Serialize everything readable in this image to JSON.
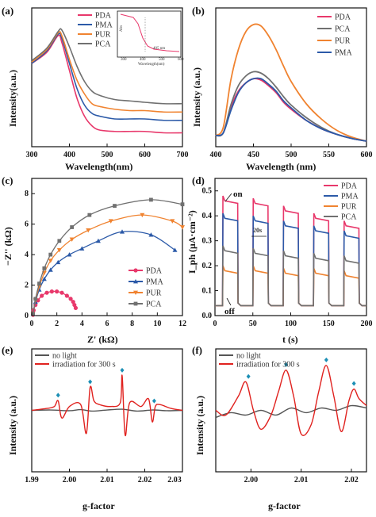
{
  "chart_data": [
    {
      "id": "a",
      "type": "line",
      "panel_label": "(a)",
      "xlabel": "Wavelength(nm)",
      "ylabel": "Intensity(a.u.)",
      "xlim": [
        300,
        700
      ],
      "ylim": [
        0,
        1
      ],
      "xticks": [
        "300",
        "400",
        "500",
        "600",
        "700"
      ],
      "legend": [
        "PDA",
        "PMA",
        "PUR",
        "PCA"
      ],
      "legend_position": "top-right",
      "series": [
        {
          "name": "PDA",
          "color": "#e8386b",
          "x": [
            300,
            340,
            370,
            380,
            400,
            420,
            440,
            460,
            480,
            520,
            560,
            600,
            650,
            700
          ],
          "y": [
            0.6,
            0.68,
            0.8,
            0.75,
            0.55,
            0.35,
            0.22,
            0.15,
            0.12,
            0.11,
            0.11,
            0.11,
            0.1,
            0.1
          ]
        },
        {
          "name": "PMA",
          "color": "#2c5aa8",
          "x": [
            300,
            340,
            370,
            380,
            400,
            420,
            440,
            460,
            480,
            520,
            560,
            600,
            650,
            700
          ],
          "y": [
            0.6,
            0.69,
            0.81,
            0.78,
            0.6,
            0.42,
            0.3,
            0.24,
            0.22,
            0.2,
            0.2,
            0.2,
            0.19,
            0.19
          ]
        },
        {
          "name": "PUR",
          "color": "#f08330",
          "x": [
            300,
            340,
            370,
            380,
            400,
            420,
            440,
            460,
            480,
            520,
            560,
            600,
            650,
            700
          ],
          "y": [
            0.61,
            0.7,
            0.82,
            0.8,
            0.63,
            0.48,
            0.38,
            0.31,
            0.29,
            0.27,
            0.26,
            0.26,
            0.25,
            0.25
          ]
        },
        {
          "name": "PCA",
          "color": "#707070",
          "x": [
            300,
            340,
            370,
            380,
            400,
            420,
            440,
            460,
            480,
            520,
            560,
            600,
            650,
            700
          ],
          "y": [
            0.62,
            0.71,
            0.83,
            0.84,
            0.72,
            0.58,
            0.47,
            0.4,
            0.37,
            0.34,
            0.33,
            0.32,
            0.31,
            0.31
          ]
        }
      ],
      "inset": {
        "ylabel": "Abs",
        "xlabel": "Wavelength(nm)",
        "xticks": [
          "300",
          "400",
          "500",
          "600"
        ],
        "annotation": "405 nm"
      }
    },
    {
      "id": "b",
      "type": "line",
      "panel_label": "(b)",
      "xlabel": "Wavelength (nm)",
      "ylabel": "Intensity (a.u.)",
      "xlim": [
        400,
        600
      ],
      "ylim": [
        0,
        1
      ],
      "xticks": [
        "400",
        "450",
        "500",
        "550",
        "600"
      ],
      "legend": [
        "PDA",
        "PCA",
        "PUR",
        "PMA"
      ],
      "legend_position": "top-right",
      "series": [
        {
          "name": "PDA",
          "color": "#e8386b",
          "x": [
            400,
            410,
            420,
            430,
            440,
            450,
            460,
            470,
            480,
            490,
            500,
            520,
            540,
            560,
            580,
            600
          ],
          "y": [
            0.08,
            0.1,
            0.28,
            0.4,
            0.46,
            0.49,
            0.48,
            0.44,
            0.39,
            0.32,
            0.27,
            0.19,
            0.13,
            0.09,
            0.06,
            0.04
          ]
        },
        {
          "name": "PCA",
          "color": "#707070",
          "x": [
            400,
            410,
            420,
            430,
            440,
            450,
            460,
            470,
            480,
            490,
            500,
            520,
            540,
            560,
            580,
            600
          ],
          "y": [
            0.08,
            0.1,
            0.3,
            0.44,
            0.51,
            0.54,
            0.53,
            0.49,
            0.43,
            0.36,
            0.3,
            0.21,
            0.14,
            0.09,
            0.06,
            0.04
          ]
        },
        {
          "name": "PUR",
          "color": "#f08330",
          "x": [
            400,
            410,
            420,
            430,
            440,
            450,
            460,
            470,
            480,
            490,
            500,
            520,
            540,
            560,
            580,
            600
          ],
          "y": [
            0.08,
            0.14,
            0.48,
            0.7,
            0.83,
            0.88,
            0.87,
            0.8,
            0.7,
            0.58,
            0.47,
            0.31,
            0.2,
            0.12,
            0.07,
            0.04
          ]
        },
        {
          "name": "PMA",
          "color": "#2c5aa8",
          "x": [
            400,
            410,
            420,
            430,
            440,
            450,
            460,
            470,
            480,
            490,
            500,
            520,
            540,
            560,
            580,
            600
          ],
          "y": [
            0.08,
            0.1,
            0.26,
            0.39,
            0.46,
            0.49,
            0.49,
            0.45,
            0.4,
            0.33,
            0.28,
            0.19,
            0.13,
            0.09,
            0.06,
            0.04
          ]
        }
      ]
    },
    {
      "id": "c",
      "type": "line",
      "panel_label": "(c)",
      "xlabel": "Z' (kΩ)",
      "ylabel": "−Z'' (kΩ)",
      "xlim": [
        0,
        12
      ],
      "ylim": [
        0,
        9
      ],
      "xticks": [
        "0",
        "2",
        "4",
        "6",
        "8",
        "10",
        "12"
      ],
      "yticks": [
        "0",
        "2",
        "4",
        "6",
        "8"
      ],
      "legend": [
        "PDA",
        "PMA",
        "PUR",
        "PCA"
      ],
      "legend_position": "bottom-right",
      "series": [
        {
          "name": "PDA",
          "color": "#e8386b",
          "marker": "circle",
          "x": [
            0.1,
            0.15,
            0.3,
            0.5,
            0.8,
            1.2,
            1.6,
            2.0,
            2.4,
            2.8,
            3.1,
            3.3,
            3.4,
            3.5
          ],
          "y": [
            0.05,
            0.35,
            0.7,
            1.0,
            1.3,
            1.5,
            1.58,
            1.58,
            1.5,
            1.3,
            1.1,
            0.9,
            0.7,
            0.5
          ]
        },
        {
          "name": "PMA",
          "color": "#2c5aa8",
          "marker": "triangle-up",
          "x": [
            0.1,
            0.3,
            0.6,
            1.0,
            1.5,
            2.1,
            3.0,
            4.0,
            5.3,
            7.2,
            9.5,
            11.4
          ],
          "y": [
            0.1,
            0.9,
            1.7,
            2.4,
            3.0,
            3.5,
            4.0,
            4.4,
            4.9,
            5.5,
            5.3,
            4.3
          ]
        },
        {
          "name": "PUR",
          "color": "#f08330",
          "marker": "triangle-down",
          "x": [
            0.1,
            0.3,
            0.6,
            1.0,
            1.5,
            2.2,
            3.2,
            4.5,
            6.3,
            8.8,
            11.2,
            12
          ],
          "y": [
            0.1,
            1.0,
            1.9,
            2.8,
            3.6,
            4.3,
            5.0,
            5.6,
            6.2,
            6.6,
            6.2,
            5.8
          ]
        },
        {
          "name": "PCA",
          "color": "#707070",
          "marker": "square",
          "x": [
            0.1,
            0.3,
            0.6,
            1.0,
            1.5,
            2.2,
            3.2,
            4.6,
            6.6,
            9.5,
            12
          ],
          "y": [
            0.1,
            1.1,
            2.1,
            3.1,
            4.0,
            4.9,
            5.8,
            6.6,
            7.2,
            7.6,
            7.3
          ]
        }
      ]
    },
    {
      "id": "d",
      "type": "line",
      "panel_label": "(d)",
      "xlabel": "t (s)",
      "ylabel": "I_ph (μA·cm⁻²)",
      "xlim": [
        0,
        200
      ],
      "ylim": [
        0,
        0.55
      ],
      "xticks": [
        "0",
        "50",
        "100",
        "150",
        "200"
      ],
      "yticks": [
        "0.0",
        "0.1",
        "0.2",
        "0.3",
        "0.4",
        "0.5"
      ],
      "legend": [
        "PDA",
        "PMA",
        "PUR",
        "PCA"
      ],
      "legend_position": "top-right",
      "annotations": [
        "on",
        "off",
        "20s"
      ],
      "on_periods": [
        [
          10,
          30
        ],
        [
          50,
          70
        ],
        [
          90,
          110
        ],
        [
          130,
          150
        ],
        [
          170,
          190
        ]
      ],
      "baseline": 0.04,
      "series": [
        {
          "name": "PDA",
          "color": "#e8386b",
          "on_levels": [
            0.46,
            0.45,
            0.42,
            0.39,
            0.36
          ]
        },
        {
          "name": "PMA",
          "color": "#2c5aa8",
          "on_levels": [
            0.39,
            0.38,
            0.36,
            0.34,
            0.32
          ]
        },
        {
          "name": "PUR",
          "color": "#f08330",
          "on_levels": [
            0.18,
            0.18,
            0.17,
            0.17,
            0.16
          ]
        },
        {
          "name": "PCA",
          "color": "#707070",
          "on_levels": [
            0.26,
            0.25,
            0.24,
            0.23,
            0.22
          ]
        }
      ]
    },
    {
      "id": "e",
      "type": "line",
      "panel_label": "(e)",
      "xlabel": "g-factor",
      "ylabel": "Intensity (a.u.)",
      "xlim": [
        1.99,
        2.03
      ],
      "xticks": [
        "1.99",
        "2.00",
        "2.01",
        "2.02",
        "2.03"
      ],
      "legend": [
        "no light",
        "irradiation for 300 s"
      ],
      "legend_position": "top-left",
      "series": [
        {
          "name": "no light",
          "color": "#555555",
          "x": [
            1.99,
            1.995,
            2.0,
            2.003,
            2.006,
            2.01,
            2.014,
            2.018,
            2.022,
            2.026,
            2.03
          ],
          "y": [
            0.0,
            0.01,
            -0.01,
            0.02,
            -0.02,
            0.01,
            0.03,
            -0.02,
            0.01,
            -0.01,
            0.0
          ]
        },
        {
          "name": "irradiation for 300 s",
          "color": "#e0221f",
          "x": [
            1.99,
            1.994,
            1.996,
            1.997,
            1.998,
            2.0,
            2.003,
            2.0045,
            2.0055,
            2.0065,
            2.008,
            2.011,
            2.0135,
            2.014,
            2.0148,
            2.016,
            2.019,
            2.021,
            2.022,
            2.0228,
            2.024,
            2.027,
            2.03
          ],
          "y": [
            0.0,
            0.05,
            0.1,
            0.25,
            -0.2,
            0.1,
            0.15,
            -0.6,
            0.6,
            0.25,
            0.15,
            0.1,
            0.2,
            0.9,
            -0.65,
            0.2,
            0.1,
            0.3,
            -0.3,
            0.1,
            0.15,
            0.05,
            0.0
          ]
        }
      ],
      "peak_markers_x": [
        1.997,
        2.0055,
        2.014,
        2.0225
      ]
    },
    {
      "id": "f",
      "type": "line",
      "panel_label": "(f)",
      "xlabel": "g-factor",
      "ylabel": "Intensity (a.u.)",
      "xlim": [
        1.993,
        2.023
      ],
      "xticks": [
        "2.00",
        "2.01",
        "2.02"
      ],
      "legend": [
        "no light",
        "irradiation for 300 s"
      ],
      "legend_position": "top-left",
      "series": [
        {
          "name": "no light",
          "color": "#555555",
          "x": [
            1.993,
            1.996,
            1.999,
            2.002,
            2.005,
            2.008,
            2.011,
            2.014,
            2.017,
            2.02,
            2.023
          ],
          "y": [
            -0.25,
            -0.15,
            -0.2,
            -0.1,
            -0.2,
            -0.05,
            -0.15,
            -0.05,
            -0.1,
            0.0,
            -0.05
          ]
        },
        {
          "name": "irradiation for 300 s",
          "color": "#e0221f",
          "x": [
            1.993,
            1.995,
            1.9975,
            1.999,
            2.0005,
            2.002,
            2.004,
            2.0055,
            2.007,
            2.0085,
            2.01,
            2.012,
            2.0135,
            2.015,
            2.0165,
            2.018,
            2.0195,
            2.0205,
            2.0215,
            2.023
          ],
          "y": [
            -0.1,
            -0.2,
            0.2,
            0.5,
            -0.1,
            -0.5,
            -0.2,
            0.3,
            0.75,
            0.2,
            -0.6,
            -0.4,
            0.3,
            0.85,
            0.2,
            -0.55,
            0.1,
            0.35,
            0.15,
            0.0
          ]
        }
      ],
      "peak_markers_x": [
        1.9995,
        2.007,
        2.015,
        2.0205
      ]
    }
  ]
}
